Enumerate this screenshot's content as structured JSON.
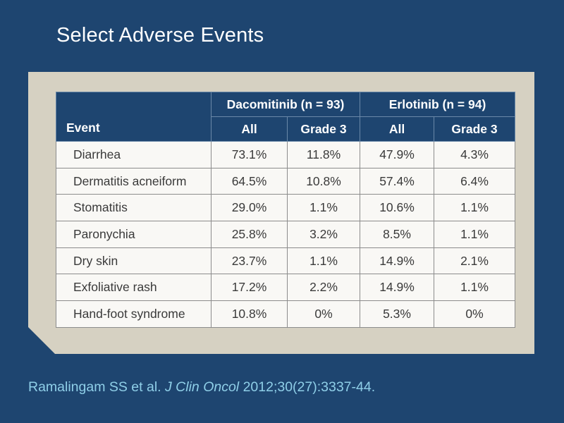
{
  "slide": {
    "title": "Select Adverse Events"
  },
  "table": {
    "event_header": "Event",
    "groups": [
      {
        "label": "Dacomitinib (n = 93)",
        "subheaders": [
          "All",
          "Grade 3"
        ]
      },
      {
        "label": "Erlotinib (n = 94)",
        "subheaders": [
          "All",
          "Grade 3"
        ]
      }
    ],
    "rows": [
      {
        "event": "Diarrhea",
        "values": [
          "73.1%",
          "11.8%",
          "47.9%",
          "4.3%"
        ]
      },
      {
        "event": "Dermatitis acneiform",
        "values": [
          "64.5%",
          "10.8%",
          "57.4%",
          "6.4%"
        ]
      },
      {
        "event": "Stomatitis",
        "values": [
          "29.0%",
          "1.1%",
          "10.6%",
          "1.1%"
        ]
      },
      {
        "event": "Paronychia",
        "values": [
          "25.8%",
          "3.2%",
          "8.5%",
          "1.1%"
        ]
      },
      {
        "event": "Dry skin",
        "values": [
          "23.7%",
          "1.1%",
          "14.9%",
          "2.1%"
        ]
      },
      {
        "event": "Exfoliative rash",
        "values": [
          "17.2%",
          "2.2%",
          "14.9%",
          "1.1%"
        ]
      },
      {
        "event": "Hand-foot syndrome",
        "values": [
          "10.8%",
          "0%",
          "5.3%",
          "0%"
        ]
      }
    ]
  },
  "citation": {
    "authors": "Ramalingam SS et al.",
    "journal": "J Clin Oncol",
    "details": "2012;30(27):3337-44."
  },
  "colors": {
    "background": "#1e4570",
    "panel": "#d6d1c2",
    "header_fill": "#1e4570",
    "cell_fill": "#f9f8f5",
    "citation_text": "#8fcfe8"
  }
}
